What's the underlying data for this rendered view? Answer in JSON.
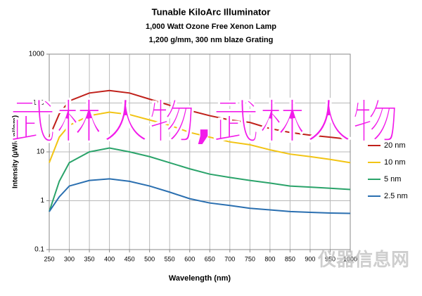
{
  "chart_data": {
    "type": "line",
    "title": "Tunable KiloArc Illuminator",
    "subtitle": [
      "1,000 Watt Ozone Free Xenon Lamp",
      "1,200 g/mm, 300 nm blaze Grating"
    ],
    "x_label": "Wavelength (nm)",
    "y_label": "Intensity (µW/cm²/nm)",
    "x": [
      250,
      275,
      300,
      350,
      400,
      450,
      500,
      550,
      600,
      650,
      700,
      750,
      800,
      850,
      900,
      950,
      1000
    ],
    "series": [
      {
        "name": "20 nm",
        "color": "#c0201a",
        "values": [
          20,
          60,
          110,
          160,
          180,
          160,
          120,
          90,
          70,
          55,
          45,
          40,
          30,
          25,
          22,
          20,
          18
        ]
      },
      {
        "name": "10 nm",
        "color": "#f2c414",
        "values": [
          6,
          20,
          35,
          55,
          65,
          58,
          45,
          35,
          25,
          20,
          16,
          14,
          11,
          9,
          8,
          7,
          6
        ]
      },
      {
        "name": "5 nm",
        "color": "#2aa36a",
        "values": [
          0.6,
          2.5,
          6,
          10,
          12,
          10,
          8,
          6,
          4.5,
          3.5,
          3,
          2.6,
          2.3,
          2,
          1.9,
          1.8,
          1.7
        ]
      },
      {
        "name": "2.5 nm",
        "color": "#2a6fb0",
        "values": [
          0.6,
          1.2,
          2,
          2.6,
          2.8,
          2.5,
          2,
          1.5,
          1.1,
          0.9,
          0.8,
          0.7,
          0.65,
          0.6,
          0.58,
          0.56,
          0.55
        ]
      }
    ],
    "xlim": [
      250,
      1000
    ],
    "xticks": [
      250,
      300,
      350,
      400,
      450,
      500,
      550,
      600,
      650,
      700,
      750,
      800,
      850,
      900,
      950,
      1000
    ],
    "ylim": [
      0.1,
      1000
    ],
    "yticks": [
      0.1,
      1,
      10,
      100,
      1000
    ],
    "y_scale": "log",
    "grid": true,
    "legend": "right",
    "annotations": [
      "武林人物,武林人物",
      "仪器信息网"
    ]
  }
}
